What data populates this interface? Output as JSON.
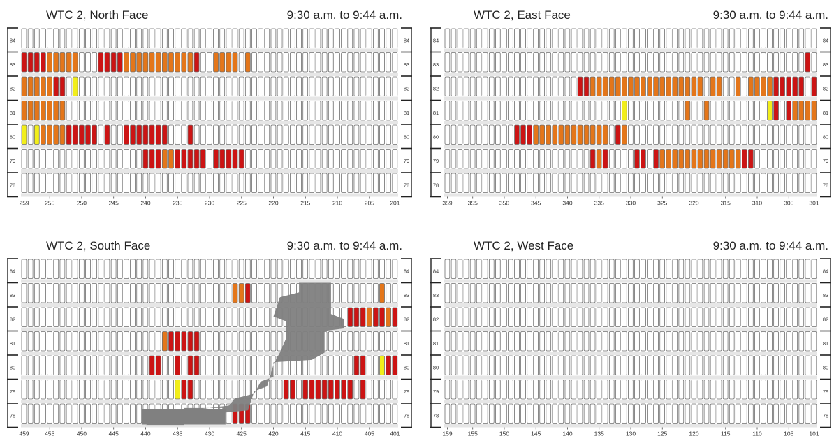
{
  "colors": {
    "empty": "#ffffff",
    "column_stroke": "#6e6e6e",
    "red": "#cc1414",
    "orange": "#e4761a",
    "yellow": "#f2ee1a",
    "gray": "#808080",
    "floor_band": "#e6e6e6"
  },
  "legend_note": "",
  "chart_data": [
    {
      "type": "heatmap",
      "title": "WTC 2, North Face",
      "time": "9:30 a.m. to 9:44 a.m.",
      "floors": [
        "84",
        "83",
        "82",
        "81",
        "80",
        "79",
        "78"
      ],
      "column_start": 259,
      "column_end": 201,
      "tick_labels": [
        "259",
        "255",
        "250",
        "245",
        "240",
        "235",
        "230",
        "225",
        "220",
        "215",
        "210",
        "205",
        "201"
      ],
      "cells": {
        "83": [
          [
            "259",
            "R"
          ],
          [
            "258",
            "R"
          ],
          [
            "257",
            "R"
          ],
          [
            "256",
            "R"
          ],
          [
            "255",
            "O"
          ],
          [
            "254",
            "O"
          ],
          [
            "253",
            "O"
          ],
          [
            "252",
            "O"
          ],
          [
            "251",
            "O"
          ],
          [
            "249",
            "E"
          ],
          [
            "248",
            "E"
          ],
          [
            "247",
            "R"
          ],
          [
            "246",
            "R"
          ],
          [
            "245",
            "R"
          ],
          [
            "244",
            "R"
          ],
          [
            "243",
            "O"
          ],
          [
            "242",
            "O"
          ],
          [
            "241",
            "O"
          ],
          [
            "240",
            "O"
          ],
          [
            "239",
            "O"
          ],
          [
            "238",
            "O"
          ],
          [
            "237",
            "O"
          ],
          [
            "236",
            "O"
          ],
          [
            "235",
            "O"
          ],
          [
            "234",
            "O"
          ],
          [
            "233",
            "O"
          ],
          [
            "232",
            "R"
          ],
          [
            "229",
            "O"
          ],
          [
            "228",
            "O"
          ],
          [
            "227",
            "O"
          ],
          [
            "226",
            "O"
          ],
          [
            "224",
            "O"
          ]
        ],
        "82": [
          [
            "259",
            "O"
          ],
          [
            "258",
            "O"
          ],
          [
            "257",
            "O"
          ],
          [
            "256",
            "O"
          ],
          [
            "255",
            "O"
          ],
          [
            "254",
            "R"
          ],
          [
            "253",
            "R"
          ],
          [
            "251",
            "Y"
          ]
        ],
        "81": [
          [
            "259",
            "O"
          ],
          [
            "258",
            "O"
          ],
          [
            "257",
            "O"
          ],
          [
            "256",
            "O"
          ],
          [
            "255",
            "O"
          ],
          [
            "254",
            "O"
          ],
          [
            "253",
            "O"
          ]
        ],
        "80": [
          [
            "259",
            "Y"
          ],
          [
            "257",
            "Y"
          ],
          [
            "256",
            "O"
          ],
          [
            "255",
            "O"
          ],
          [
            "254",
            "O"
          ],
          [
            "253",
            "O"
          ],
          [
            "252",
            "R"
          ],
          [
            "251",
            "R"
          ],
          [
            "250",
            "R"
          ],
          [
            "249",
            "R"
          ],
          [
            "248",
            "R"
          ],
          [
            "246",
            "R"
          ],
          [
            "243",
            "R"
          ],
          [
            "242",
            "R"
          ],
          [
            "241",
            "R"
          ],
          [
            "240",
            "R"
          ],
          [
            "239",
            "R"
          ],
          [
            "238",
            "R"
          ],
          [
            "237",
            "R"
          ],
          [
            "233",
            "R"
          ]
        ],
        "79": [
          [
            "240",
            "R"
          ],
          [
            "239",
            "R"
          ],
          [
            "238",
            "R"
          ],
          [
            "237",
            "O"
          ],
          [
            "236",
            "O"
          ],
          [
            "235",
            "R"
          ],
          [
            "234",
            "R"
          ],
          [
            "233",
            "R"
          ],
          [
            "232",
            "R"
          ],
          [
            "231",
            "R"
          ],
          [
            "229",
            "R"
          ],
          [
            "228",
            "R"
          ],
          [
            "227",
            "R"
          ],
          [
            "226",
            "R"
          ],
          [
            "225",
            "R"
          ]
        ]
      }
    },
    {
      "type": "heatmap",
      "title": "WTC 2, East Face",
      "time": "9:30 a.m. to 9:44 a.m.",
      "floors": [
        "84",
        "83",
        "82",
        "81",
        "80",
        "79",
        "78"
      ],
      "column_start": 359,
      "column_end": 301,
      "tick_labels": [
        "359",
        "355",
        "350",
        "345",
        "340",
        "335",
        "330",
        "325",
        "320",
        "315",
        "310",
        "305",
        "301"
      ],
      "cells": {
        "83": [
          [
            "302",
            "R"
          ]
        ],
        "82": [
          [
            "338",
            "R"
          ],
          [
            "337",
            "R"
          ],
          [
            "336",
            "O"
          ],
          [
            "335",
            "O"
          ],
          [
            "334",
            "O"
          ],
          [
            "333",
            "O"
          ],
          [
            "332",
            "O"
          ],
          [
            "331",
            "O"
          ],
          [
            "330",
            "O"
          ],
          [
            "329",
            "O"
          ],
          [
            "328",
            "O"
          ],
          [
            "327",
            "O"
          ],
          [
            "326",
            "O"
          ],
          [
            "325",
            "O"
          ],
          [
            "324",
            "O"
          ],
          [
            "323",
            "O"
          ],
          [
            "322",
            "O"
          ],
          [
            "321",
            "O"
          ],
          [
            "320",
            "O"
          ],
          [
            "319",
            "O"
          ],
          [
            "317",
            "O"
          ],
          [
            "316",
            "O"
          ],
          [
            "313",
            "O"
          ],
          [
            "311",
            "O"
          ],
          [
            "310",
            "O"
          ],
          [
            "309",
            "O"
          ],
          [
            "308",
            "O"
          ],
          [
            "307",
            "R"
          ],
          [
            "306",
            "R"
          ],
          [
            "305",
            "R"
          ],
          [
            "304",
            "R"
          ],
          [
            "303",
            "R"
          ],
          [
            "301",
            "R"
          ]
        ],
        "81": [
          [
            "331",
            "Y"
          ],
          [
            "321",
            "O"
          ],
          [
            "318",
            "O"
          ],
          [
            "308",
            "Y"
          ],
          [
            "307",
            "R"
          ],
          [
            "305",
            "R"
          ],
          [
            "304",
            "O"
          ],
          [
            "303",
            "O"
          ],
          [
            "302",
            "O"
          ],
          [
            "301",
            "O"
          ]
        ],
        "80": [
          [
            "348",
            "R"
          ],
          [
            "347",
            "R"
          ],
          [
            "346",
            "R"
          ],
          [
            "345",
            "O"
          ],
          [
            "344",
            "O"
          ],
          [
            "343",
            "O"
          ],
          [
            "342",
            "O"
          ],
          [
            "341",
            "O"
          ],
          [
            "340",
            "O"
          ],
          [
            "339",
            "O"
          ],
          [
            "338",
            "O"
          ],
          [
            "337",
            "O"
          ],
          [
            "336",
            "O"
          ],
          [
            "335",
            "O"
          ],
          [
            "334",
            "O"
          ],
          [
            "332",
            "R"
          ],
          [
            "331",
            "O"
          ]
        ],
        "79": [
          [
            "336",
            "R"
          ],
          [
            "335",
            "O"
          ],
          [
            "334",
            "R"
          ],
          [
            "329",
            "R"
          ],
          [
            "328",
            "R"
          ],
          [
            "326",
            "R"
          ],
          [
            "325",
            "O"
          ],
          [
            "324",
            "O"
          ],
          [
            "323",
            "O"
          ],
          [
            "322",
            "O"
          ],
          [
            "321",
            "O"
          ],
          [
            "320",
            "O"
          ],
          [
            "319",
            "O"
          ],
          [
            "318",
            "O"
          ],
          [
            "317",
            "O"
          ],
          [
            "316",
            "O"
          ],
          [
            "315",
            "O"
          ],
          [
            "314",
            "O"
          ],
          [
            "313",
            "O"
          ],
          [
            "312",
            "R"
          ],
          [
            "311",
            "R"
          ]
        ]
      }
    },
    {
      "type": "heatmap",
      "title": "WTC 2, South Face",
      "time": "9:30 a.m. to 9:44 a.m.",
      "floors": [
        "84",
        "83",
        "82",
        "81",
        "80",
        "79",
        "78"
      ],
      "column_start": 459,
      "column_end": 401,
      "tick_labels": [
        "459",
        "455",
        "450",
        "445",
        "440",
        "435",
        "430",
        "425",
        "420",
        "415",
        "410",
        "405",
        "401"
      ],
      "cells": {
        "83": [
          [
            "426",
            "O"
          ],
          [
            "425",
            "O"
          ],
          [
            "424",
            "R"
          ],
          [
            "403",
            "O"
          ]
        ],
        "82": [
          [
            "408",
            "R"
          ],
          [
            "407",
            "R"
          ],
          [
            "406",
            "R"
          ],
          [
            "405",
            "O"
          ],
          [
            "404",
            "R"
          ],
          [
            "403",
            "R"
          ],
          [
            "402",
            "O"
          ],
          [
            "401",
            "R"
          ]
        ],
        "81": [
          [
            "437",
            "O"
          ],
          [
            "436",
            "R"
          ],
          [
            "435",
            "R"
          ],
          [
            "434",
            "R"
          ],
          [
            "433",
            "R"
          ],
          [
            "432",
            "R"
          ]
        ],
        "80": [
          [
            "439",
            "R"
          ],
          [
            "438",
            "R"
          ],
          [
            "435",
            "R"
          ],
          [
            "433",
            "R"
          ],
          [
            "432",
            "R"
          ],
          [
            "407",
            "R"
          ],
          [
            "406",
            "R"
          ],
          [
            "403",
            "Y"
          ],
          [
            "402",
            "R"
          ],
          [
            "401",
            "R"
          ]
        ],
        "79": [
          [
            "435",
            "Y"
          ],
          [
            "434",
            "R"
          ],
          [
            "433",
            "R"
          ],
          [
            "418",
            "R"
          ],
          [
            "417",
            "R"
          ],
          [
            "415",
            "R"
          ],
          [
            "414",
            "R"
          ],
          [
            "413",
            "R"
          ],
          [
            "412",
            "R"
          ],
          [
            "411",
            "R"
          ],
          [
            "410",
            "R"
          ],
          [
            "409",
            "R"
          ],
          [
            "408",
            "R"
          ],
          [
            "406",
            "R"
          ]
        ],
        "78": [
          [
            "426",
            "R"
          ],
          [
            "425",
            "R"
          ],
          [
            "424",
            "R"
          ]
        ]
      },
      "gray_region": true
    },
    {
      "type": "heatmap",
      "title": "WTC 2, West Face",
      "time": "9:30 a.m. to 9:44 a.m.",
      "floors": [
        "84",
        "83",
        "82",
        "81",
        "80",
        "79",
        "78"
      ],
      "column_start": 159,
      "column_end": 101,
      "tick_labels": [
        "159",
        "155",
        "150",
        "145",
        "140",
        "135",
        "130",
        "125",
        "120",
        "115",
        "110",
        "105",
        "101"
      ],
      "cells": {}
    }
  ]
}
